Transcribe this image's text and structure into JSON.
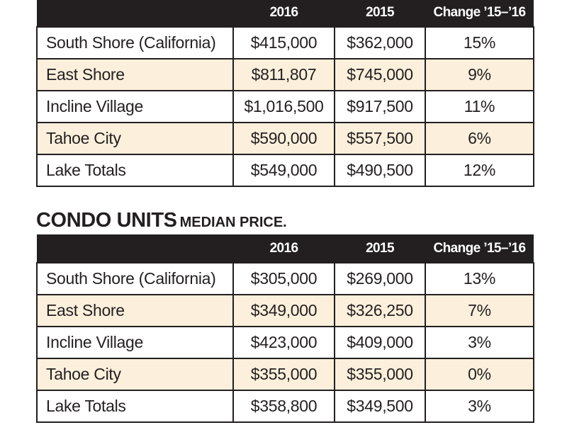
{
  "single_family": {
    "headers": [
      "",
      "2016",
      "2015",
      "Change ’15–’16"
    ],
    "rows": [
      {
        "region": "South Shore (California)",
        "y2016": "$415,000",
        "y2015": "$362,000",
        "change": "15%"
      },
      {
        "region": "East Shore",
        "y2016": "$811,807",
        "y2015": "$745,000",
        "change": "9%"
      },
      {
        "region": "Incline Village",
        "y2016": "$1,016,500",
        "y2015": "$917,500",
        "change": "11%"
      },
      {
        "region": "Tahoe City",
        "y2016": "$590,000",
        "y2015": "$557,500",
        "change": "6%"
      },
      {
        "region": "Lake Totals",
        "y2016": "$549,000",
        "y2015": "$490,500",
        "change": "12%"
      }
    ]
  },
  "condo": {
    "title": "CONDO UNITS",
    "subtitle": "MEDIAN PRICE.",
    "headers": [
      "",
      "2016",
      "2015",
      "Change ’15–’16"
    ],
    "rows": [
      {
        "region": "South Shore (California)",
        "y2016": "$305,000",
        "y2015": "$269,000",
        "change": "13%"
      },
      {
        "region": "East Shore",
        "y2016": "$349,000",
        "y2015": "$326,250",
        "change": "7%"
      },
      {
        "region": "Incline Village",
        "y2016": "$423,000",
        "y2015": "$409,000",
        "change": "3%"
      },
      {
        "region": "Tahoe City",
        "y2016": "$355,000",
        "y2015": "$355,000",
        "change": "0%"
      },
      {
        "region": "Lake Totals",
        "y2016": "$358,800",
        "y2015": "$349,500",
        "change": "3%"
      }
    ]
  },
  "colors": {
    "header_background": "#231f20",
    "alternate_row": "#fcf0dc",
    "border": "#231f20"
  }
}
